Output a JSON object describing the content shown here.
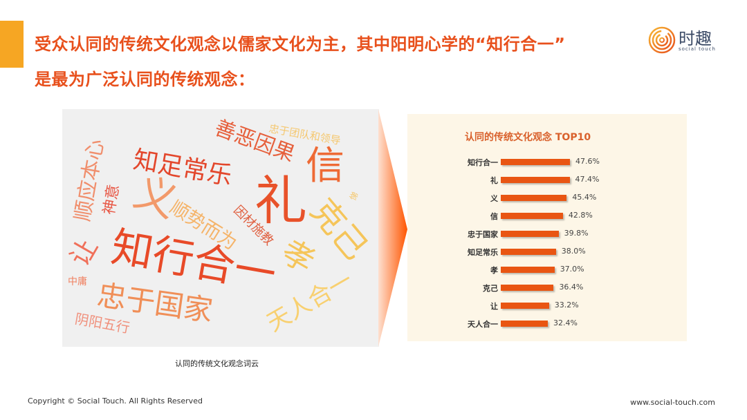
{
  "header": {
    "title_line1": "受众认同的传统文化观念以儒家文化为主，其中阳明心学的“知行合一”",
    "title_line2": "是最为广泛认同的传统观念：",
    "accent_color": "#f6a623",
    "title_color": "#e8501c"
  },
  "logo": {
    "name": "时趣",
    "sub": "social touch"
  },
  "word_cloud": {
    "caption": "认同的传统文化观念词云",
    "words": [
      "知行合一",
      "忠于国家",
      "知足常乐",
      "善恶因果",
      "信",
      "礼",
      "克己",
      "孝",
      "天人合一",
      "义",
      "顺势而为",
      "因材施教",
      "忠于团队和领导",
      "顺应本心",
      "神意",
      "让",
      "中庸",
      "阴阳五行",
      "悌"
    ]
  },
  "chart_data": {
    "type": "bar",
    "orientation": "horizontal",
    "title": "认同的传统文化观念 TOP10",
    "categories": [
      "知行合一",
      "礼",
      "义",
      "信",
      "忠于国家",
      "知足常乐",
      "孝",
      "克己",
      "让",
      "天人合一"
    ],
    "values": [
      47.6,
      47.4,
      45.4,
      42.8,
      39.8,
      38.0,
      37.0,
      36.4,
      33.2,
      32.4
    ],
    "labels": [
      "47.6%",
      "47.4%",
      "45.4%",
      "42.8%",
      "39.8%",
      "38.0%",
      "37.0%",
      "36.4%",
      "33.2%",
      "32.4%"
    ],
    "bar_color": "#e95512",
    "grid": false
  },
  "footer": {
    "copyright": "Copyright © Social Touch. All Rights Reserved",
    "url": "www.social-touch.com"
  }
}
